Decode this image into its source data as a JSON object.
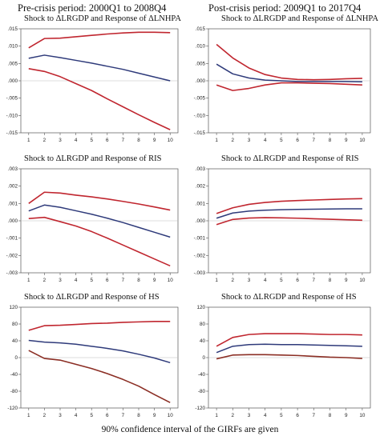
{
  "headers": {
    "left": "Pre-crisis period: 2000Q1 to 2008Q4",
    "right": "Post-crisis period: 2009Q1 to 2017Q4"
  },
  "footnote": "90% confidence interval of the GIRFs are given",
  "colors": {
    "response": "#2e3a7a",
    "band": "#c0262f",
    "band_dark": "#8b2e24"
  },
  "chart_data": [
    {
      "type": "line",
      "title": "Shock to ΔLRGDP and Response of  ΔLNHPA",
      "x": [
        1,
        2,
        3,
        4,
        5,
        6,
        7,
        8,
        9,
        10
      ],
      "ylim": [
        -0.015,
        0.015
      ],
      "yticks": [
        ".015",
        ".010",
        ".005",
        ".000",
        "-.005",
        "-.010",
        "-.015"
      ],
      "ytick_values": [
        0.015,
        0.01,
        0.005,
        0.0,
        -0.005,
        -0.01,
        -0.015
      ],
      "series": [
        {
          "role": "upper",
          "values": [
            0.0095,
            0.0122,
            0.0123,
            0.0127,
            0.0131,
            0.0135,
            0.0138,
            0.014,
            0.014,
            0.0139
          ]
        },
        {
          "role": "response",
          "values": [
            0.0065,
            0.0074,
            0.0067,
            0.0059,
            0.0051,
            0.0042,
            0.0033,
            0.0022,
            0.0011,
            0.0
          ]
        },
        {
          "role": "lower",
          "values": [
            0.0035,
            0.0027,
            0.0012,
            -0.0008,
            -0.0028,
            -0.0052,
            -0.0075,
            -0.0098,
            -0.012,
            -0.0141
          ]
        }
      ]
    },
    {
      "type": "line",
      "title": "Shock to ΔLRGDP and Response of  ΔLNHPA",
      "x": [
        1,
        2,
        3,
        4,
        5,
        6,
        7,
        8,
        9,
        10
      ],
      "ylim": [
        -0.015,
        0.015
      ],
      "yticks": [
        ".015",
        ".010",
        ".005",
        ".000",
        "-.005",
        "-.010",
        "-.015"
      ],
      "ytick_values": [
        0.015,
        0.01,
        0.005,
        0.0,
        -0.005,
        -0.01,
        -0.015
      ],
      "series": [
        {
          "role": "upper",
          "values": [
            0.0105,
            0.0066,
            0.0037,
            0.0018,
            0.0008,
            0.0004,
            0.0003,
            0.0004,
            0.0006,
            0.0007
          ]
        },
        {
          "role": "response",
          "values": [
            0.0048,
            0.002,
            0.0008,
            0.0002,
            0.0,
            -0.0002,
            -0.0002,
            -0.0002,
            -0.0002,
            -0.0003
          ]
        },
        {
          "role": "lower",
          "values": [
            -0.0012,
            -0.0028,
            -0.0022,
            -0.0012,
            -0.0006,
            -0.0006,
            -0.0007,
            -0.0008,
            -0.001,
            -0.0012
          ]
        }
      ]
    },
    {
      "type": "line",
      "title": "Shock to ΔLRGDP and Response of  RIS",
      "x": [
        1,
        2,
        3,
        4,
        5,
        6,
        7,
        8,
        9,
        10
      ],
      "ylim": [
        -0.003,
        0.003
      ],
      "yticks": [
        ".003",
        ".002",
        ".001",
        ".000",
        "-.001",
        "-.002",
        "-.003"
      ],
      "ytick_values": [
        0.003,
        0.002,
        0.001,
        0.0,
        -0.001,
        -0.002,
        -0.003
      ],
      "series": [
        {
          "role": "upper",
          "values": [
            0.001,
            0.00165,
            0.0016,
            0.00148,
            0.00138,
            0.00126,
            0.00112,
            0.00097,
            0.0008,
            0.00062
          ]
        },
        {
          "role": "response",
          "values": [
            0.00057,
            0.00091,
            0.00078,
            0.00058,
            0.00038,
            0.00015,
            -0.0001,
            -0.00038,
            -0.00066,
            -0.00094
          ]
        },
        {
          "role": "lower",
          "values": [
            0.00013,
            0.0002,
            -5e-05,
            -0.0003,
            -0.00062,
            -0.001,
            -0.0014,
            -0.0018,
            -0.0022,
            -0.0026
          ]
        }
      ]
    },
    {
      "type": "line",
      "title": "Shock to ΔLRGDP and Response of  RIS",
      "x": [
        1,
        2,
        3,
        4,
        5,
        6,
        7,
        8,
        9,
        10
      ],
      "ylim": [
        -0.003,
        0.003
      ],
      "yticks": [
        ".003",
        ".002",
        ".001",
        ".000",
        "-.001",
        "-.002",
        "-.003"
      ],
      "ytick_values": [
        0.003,
        0.002,
        0.001,
        0.0,
        -0.001,
        -0.002,
        -0.003
      ],
      "series": [
        {
          "role": "upper",
          "values": [
            0.00042,
            0.00075,
            0.00095,
            0.00106,
            0.00113,
            0.00117,
            0.0012,
            0.00123,
            0.00126,
            0.00128
          ]
        },
        {
          "role": "response",
          "values": [
            0.00015,
            0.00045,
            0.00056,
            0.00061,
            0.00064,
            0.00066,
            0.00067,
            0.00068,
            0.00069,
            0.00069
          ]
        },
        {
          "role": "lower",
          "values": [
            -0.00022,
            8e-05,
            0.00016,
            0.00018,
            0.00017,
            0.00015,
            0.00012,
            9e-05,
            6e-05,
            3e-05
          ]
        }
      ]
    },
    {
      "type": "line",
      "title": "Shock to ΔLRGDP and Response of  HS",
      "x": [
        1,
        2,
        3,
        4,
        5,
        6,
        7,
        8,
        9,
        10
      ],
      "ylim": [
        -120,
        120
      ],
      "yticks": [
        "120",
        "80",
        "40",
        "0",
        "-40",
        "-80",
        "-120"
      ],
      "ytick_values": [
        120,
        80,
        40,
        0,
        -40,
        -80,
        -120
      ],
      "series": [
        {
          "role": "upper",
          "values": [
            65,
            76,
            77,
            79,
            81,
            82,
            84,
            85,
            86,
            86
          ]
        },
        {
          "role": "response",
          "values": [
            41,
            37,
            35,
            32,
            27,
            22,
            16,
            8,
            -1,
            -12
          ]
        },
        {
          "role": "lower",
          "values": [
            17,
            -2,
            -6,
            -16,
            -26,
            -38,
            -52,
            -68,
            -88,
            -107
          ]
        }
      ]
    },
    {
      "type": "line",
      "title": "Shock to ΔLRGDP and Response of  HS",
      "x": [
        1,
        2,
        3,
        4,
        5,
        6,
        7,
        8,
        9,
        10
      ],
      "ylim": [
        -120,
        120
      ],
      "yticks": [
        "120",
        "80",
        "40",
        "0",
        "-40",
        "-80",
        "-120"
      ],
      "ytick_values": [
        120,
        80,
        40,
        0,
        -40,
        -80,
        -120
      ],
      "series": [
        {
          "role": "upper",
          "values": [
            27,
            48,
            55,
            57,
            57,
            57,
            56,
            55,
            55,
            54
          ]
        },
        {
          "role": "response",
          "values": [
            12,
            27,
            31,
            32,
            31,
            31,
            30,
            29,
            28,
            27
          ]
        },
        {
          "role": "lower",
          "values": [
            -3,
            6,
            7,
            7,
            6,
            5,
            3,
            1,
            0,
            -2
          ]
        }
      ]
    }
  ]
}
